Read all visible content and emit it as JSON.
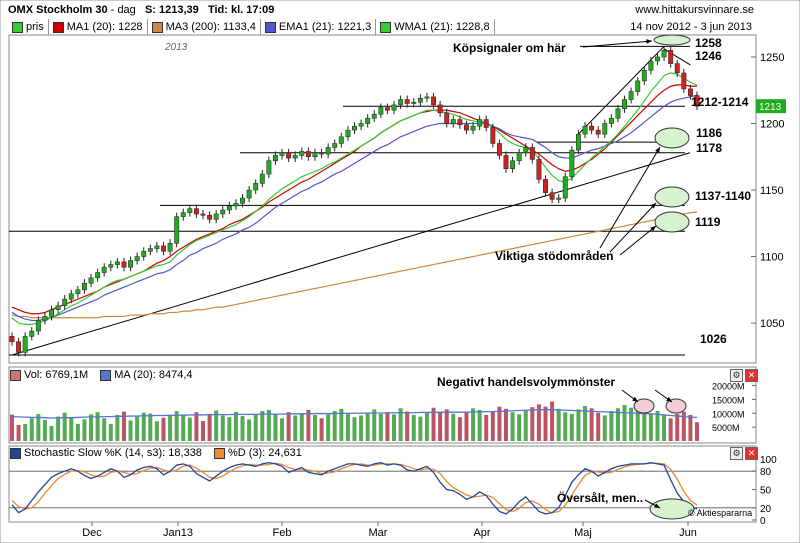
{
  "header": {
    "title": "OMX Stockholm 30",
    "period": "dag",
    "close_label": "S: 1213,39",
    "time_label": "Tid: kl. 17:09",
    "site": "www.hittakursvinnare.se"
  },
  "legend": {
    "items": [
      {
        "label": "pris",
        "color": "#33cc33"
      },
      {
        "label": "MA1 (20): 1228",
        "color": "#cc0000"
      },
      {
        "label": "MA3 (200): 1133,4",
        "color": "#cc8844"
      },
      {
        "label": "EMA1 (21): 1221,3",
        "color": "#5555cc"
      },
      {
        "label": "WMA1 (21): 1228,8",
        "color": "#33cc33"
      }
    ],
    "date_range": "14 nov 2012 - 3 jun 2013"
  },
  "volume_legend": {
    "vol_label": "Vol: 6769,1M",
    "ma_label": "MA (20): 8474,4",
    "vol_color": "#cc7777",
    "ma_color": "#5577cc"
  },
  "stoch_legend": {
    "k_label": "Stochastic Slow %K (14, s3): 18,338",
    "d_label": "%D (3): 24,631",
    "k_color": "#224499",
    "d_color": "#ee8833"
  },
  "watermark": "© Aktiespararna",
  "year_label": "2013",
  "chart_data": {
    "type": "candlestick",
    "x_labels": [
      "Dec",
      "Jan13",
      "Feb",
      "Mar",
      "Apr",
      "Maj",
      "Jun"
    ],
    "y_ticks": [
      1050,
      1100,
      1150,
      1200,
      1250
    ],
    "ylim": [
      1020,
      1265
    ],
    "closes": [
      1036,
      1028,
      1040,
      1044,
      1052,
      1055,
      1060,
      1063,
      1068,
      1072,
      1075,
      1080,
      1084,
      1088,
      1092,
      1094,
      1096,
      1092,
      1097,
      1100,
      1104,
      1106,
      1108,
      1104,
      1110,
      1130,
      1133,
      1136,
      1132,
      1131,
      1128,
      1132,
      1135,
      1138,
      1140,
      1144,
      1150,
      1155,
      1162,
      1172,
      1176,
      1178,
      1174,
      1176,
      1179,
      1175,
      1178,
      1177,
      1182,
      1185,
      1190,
      1195,
      1198,
      1200,
      1204,
      1207,
      1212,
      1210,
      1214,
      1218,
      1215,
      1216,
      1219,
      1220,
      1214,
      1208,
      1200,
      1203,
      1199,
      1195,
      1198,
      1203,
      1197,
      1185,
      1176,
      1166,
      1172,
      1178,
      1182,
      1173,
      1158,
      1148,
      1143,
      1144,
      1160,
      1180,
      1192,
      1198,
      1195,
      1192,
      1200,
      1204,
      1211,
      1218,
      1224,
      1232,
      1240,
      1247,
      1250,
      1255,
      1245,
      1238,
      1226,
      1221,
      1213
    ],
    "series": [
      {
        "name": "MA1 (20)",
        "values": [
          1062,
          1060,
          1058,
          1057,
          1057,
          1058,
          1060,
          1062,
          1064,
          1066,
          1068,
          1070,
          1072,
          1074,
          1077,
          1079,
          1081,
          1083,
          1085,
          1087,
          1089,
          1092,
          1095,
          1097,
          1100,
          1104,
          1107,
          1110,
          1113,
          1115,
          1117,
          1119,
          1121,
          1124,
          1126,
          1128,
          1131,
          1134,
          1137,
          1141,
          1144,
          1147,
          1150,
          1153,
          1156,
          1158,
          1161,
          1164,
          1167,
          1170,
          1173,
          1176,
          1179,
          1183,
          1186,
          1189,
          1193,
          1196,
          1199,
          1202,
          1204,
          1206,
          1208,
          1209,
          1210,
          1210,
          1210,
          1209,
          1208,
          1206,
          1204,
          1202,
          1200,
          1198,
          1195,
          1192,
          1189,
          1186,
          1183,
          1180,
          1177,
          1173,
          1169,
          1166,
          1164,
          1165,
          1167,
          1170,
          1173,
          1177,
          1181,
          1186,
          1191,
          1196,
          1201,
          1206,
          1211,
          1216,
          1221,
          1225,
          1228,
          1229,
          1229,
          1228,
          1228
        ]
      },
      {
        "name": "MA3 (200)",
        "values": [
          1056,
          1055,
          1055,
          1054,
          1054,
          1054,
          1054,
          1054,
          1054,
          1054,
          1054,
          1054,
          1054,
          1054,
          1055,
          1055,
          1055,
          1055,
          1056,
          1056,
          1056,
          1057,
          1057,
          1057,
          1058,
          1058,
          1059,
          1059,
          1060,
          1060,
          1061,
          1062,
          1062,
          1063,
          1064,
          1065,
          1066,
          1067,
          1068,
          1069,
          1070,
          1071,
          1072,
          1073,
          1074,
          1075,
          1076,
          1077,
          1078,
          1079,
          1080,
          1081,
          1082,
          1083,
          1084,
          1085,
          1086,
          1087,
          1088,
          1089,
          1090,
          1091,
          1092,
          1093,
          1094,
          1095,
          1096,
          1097,
          1098,
          1099,
          1100,
          1101,
          1102,
          1103,
          1104,
          1105,
          1106,
          1107,
          1108,
          1109,
          1110,
          1111,
          1112,
          1113,
          1114,
          1115,
          1116,
          1117,
          1118,
          1119,
          1120,
          1121,
          1122,
          1123,
          1124,
          1125,
          1126,
          1127,
          1128,
          1129,
          1130,
          1131,
          1132,
          1133,
          1133.4
        ]
      },
      {
        "name": "EMA1 (21)",
        "values": [
          1058,
          1055,
          1053,
          1052,
          1052,
          1053,
          1054,
          1056,
          1058,
          1060,
          1062,
          1064,
          1066,
          1068,
          1071,
          1073,
          1075,
          1077,
          1079,
          1081,
          1083,
          1085,
          1087,
          1088,
          1090,
          1094,
          1097,
          1101,
          1103,
          1106,
          1108,
          1110,
          1113,
          1115,
          1117,
          1120,
          1122,
          1125,
          1129,
          1133,
          1137,
          1140,
          1143,
          1146,
          1149,
          1151,
          1154,
          1156,
          1159,
          1162,
          1164,
          1167,
          1170,
          1173,
          1176,
          1179,
          1182,
          1184,
          1187,
          1190,
          1192,
          1194,
          1196,
          1198,
          1199,
          1200,
          1200,
          1200,
          1200,
          1200,
          1200,
          1200,
          1200,
          1198,
          1196,
          1193,
          1191,
          1190,
          1189,
          1188,
          1185,
          1182,
          1178,
          1175,
          1174,
          1174,
          1176,
          1178,
          1180,
          1181,
          1183,
          1185,
          1187,
          1190,
          1193,
          1197,
          1201,
          1205,
          1209,
          1213,
          1216,
          1218,
          1219,
          1220,
          1221.3
        ]
      },
      {
        "name": "WMA1 (21)",
        "values": [
          1054,
          1050,
          1049,
          1049,
          1050,
          1052,
          1054,
          1057,
          1060,
          1063,
          1065,
          1068,
          1071,
          1074,
          1077,
          1080,
          1082,
          1083,
          1085,
          1087,
          1089,
          1091,
          1093,
          1094,
          1096,
          1101,
          1105,
          1109,
          1112,
          1114,
          1116,
          1118,
          1120,
          1122,
          1124,
          1127,
          1130,
          1134,
          1138,
          1143,
          1147,
          1151,
          1154,
          1157,
          1160,
          1162,
          1164,
          1166,
          1169,
          1171,
          1174,
          1177,
          1180,
          1183,
          1186,
          1189,
          1193,
          1196,
          1199,
          1202,
          1204,
          1206,
          1208,
          1210,
          1210,
          1209,
          1208,
          1207,
          1205,
          1203,
          1202,
          1201,
          1200,
          1197,
          1193,
          1188,
          1185,
          1183,
          1182,
          1179,
          1174,
          1167,
          1161,
          1157,
          1156,
          1159,
          1164,
          1169,
          1174,
          1178,
          1183,
          1187,
          1192,
          1198,
          1204,
          1210,
          1217,
          1224,
          1230,
          1236,
          1238,
          1237,
          1234,
          1231,
          1228.8
        ]
      }
    ],
    "levels": [
      {
        "value": 1258,
        "label": "1258"
      },
      {
        "value": 1246,
        "label": "1246"
      },
      {
        "value": 1213,
        "label": "1212-1214"
      },
      {
        "value": 1186,
        "label": "1186"
      },
      {
        "value": 1178,
        "label": "1178"
      },
      {
        "value": 1138.5,
        "label": "1137-1140"
      },
      {
        "value": 1119,
        "label": "1119"
      },
      {
        "value": 1026,
        "label": "1026"
      }
    ],
    "annotations": {
      "buy_signals": "Köpsignaler om här",
      "support_zones": "Viktiga stödområden",
      "negative_volume": "Negativt handelsvolymmönster",
      "oversold": "Översålt, men..",
      "last_price": "1213"
    },
    "volume": {
      "y_ticks": [
        "20000M",
        "15000M",
        "10000M",
        "5000M"
      ],
      "ylim": [
        0,
        22000
      ],
      "values": [
        9500,
        5800,
        6100,
        8200,
        9700,
        7600,
        5400,
        8800,
        10200,
        8400,
        6200,
        7800,
        9600,
        10400,
        8200,
        6100,
        9400,
        10600,
        7400,
        8800,
        10200,
        9900,
        7100,
        8400,
        9200,
        10800,
        9600,
        8400,
        10400,
        7200,
        9800,
        11000,
        9200,
        8600,
        10500,
        9000,
        7800,
        9400,
        10800,
        11200,
        9600,
        8200,
        10400,
        9200,
        10000,
        11200,
        9400,
        8200,
        9600,
        10800,
        11600,
        9800,
        8600,
        9200,
        10200,
        11400,
        9800,
        10400,
        9600,
        11800,
        10600,
        9400,
        8800,
        10200,
        12000,
        10600,
        11400,
        9800,
        8600,
        10400,
        11800,
        11200,
        9400,
        10800,
        12400,
        11600,
        10400,
        9600,
        11200,
        12200,
        13200,
        12400,
        14200,
        11600,
        10400,
        9800,
        11400,
        12600,
        11800,
        10200,
        9200,
        10800,
        11800,
        13000,
        12000,
        11200,
        10400,
        9800,
        10800,
        9200,
        8200,
        9800,
        10600,
        9400,
        6769
      ],
      "ma": [
        8800,
        8700,
        8600,
        8500,
        8500,
        8400,
        8300,
        8300,
        8400,
        8400,
        8500,
        8600,
        8700,
        8700,
        8800,
        8800,
        8900,
        8900,
        9000,
        9000,
        9100,
        9100,
        9200,
        9200,
        9300,
        9300,
        9300,
        9400,
        9400,
        9400,
        9500,
        9500,
        9500,
        9500,
        9600,
        9600,
        9600,
        9600,
        9700,
        9700,
        9700,
        9700,
        9800,
        9800,
        9800,
        9800,
        9900,
        9900,
        9900,
        9900,
        10000,
        10000,
        10000,
        10000,
        10100,
        10100,
        10100,
        10100,
        10200,
        10200,
        10200,
        10200,
        10300,
        10300,
        10300,
        10300,
        10400,
        10400,
        10400,
        10400,
        10500,
        10500,
        10600,
        10600,
        10700,
        10800,
        10900,
        11000,
        11100,
        11200,
        11300,
        11300,
        11300,
        11200,
        11100,
        11000,
        10900,
        10800,
        10700,
        10600,
        10500,
        10400,
        10300,
        10200,
        10100,
        10000,
        9900,
        9800,
        9600,
        9400,
        9200,
        9000,
        8800,
        8600,
        8474
      ]
    },
    "stochastic": {
      "y_ticks": [
        100,
        80,
        50,
        20,
        0
      ],
      "ylim": [
        0,
        100
      ],
      "k": [
        25,
        12,
        18,
        32,
        46,
        58,
        70,
        76,
        80,
        84,
        80,
        73,
        68,
        72,
        78,
        84,
        80,
        70,
        74,
        82,
        86,
        88,
        84,
        74,
        80,
        90,
        92,
        88,
        76,
        70,
        64,
        72,
        80,
        86,
        90,
        92,
        90,
        88,
        92,
        94,
        92,
        88,
        78,
        82,
        86,
        78,
        76,
        74,
        80,
        84,
        88,
        92,
        92,
        90,
        88,
        92,
        94,
        90,
        92,
        90,
        82,
        80,
        84,
        88,
        78,
        62,
        50,
        48,
        42,
        34,
        38,
        46,
        40,
        26,
        14,
        10,
        18,
        30,
        38,
        26,
        14,
        10,
        12,
        20,
        40,
        62,
        74,
        84,
        80,
        72,
        78,
        84,
        88,
        90,
        92,
        92,
        92,
        94,
        92,
        90,
        66,
        44,
        30,
        22,
        18.3
      ],
      "d": [
        32,
        22,
        18,
        20,
        30,
        44,
        56,
        68,
        75,
        80,
        81,
        79,
        74,
        71,
        72,
        78,
        80,
        78,
        75,
        76,
        81,
        85,
        86,
        82,
        79,
        82,
        88,
        90,
        85,
        78,
        70,
        68,
        72,
        79,
        85,
        89,
        91,
        90,
        90,
        91,
        93,
        91,
        86,
        83,
        82,
        82,
        80,
        76,
        77,
        79,
        84,
        88,
        91,
        92,
        90,
        90,
        92,
        92,
        92,
        91,
        88,
        84,
        82,
        84,
        83,
        76,
        63,
        53,
        47,
        41,
        38,
        39,
        41,
        37,
        27,
        17,
        14,
        19,
        29,
        31,
        26,
        17,
        12,
        14,
        24,
        41,
        58,
        73,
        79,
        79,
        77,
        78,
        83,
        87,
        90,
        91,
        92,
        93,
        93,
        92,
        83,
        67,
        47,
        32,
        24.6
      ]
    }
  }
}
